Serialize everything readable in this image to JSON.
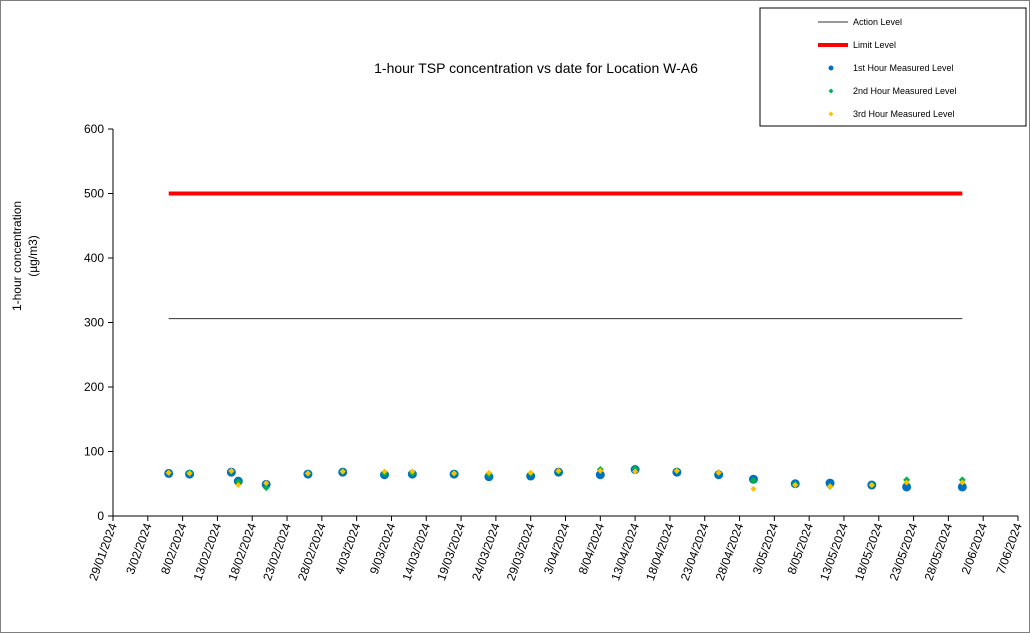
{
  "chart_data": {
    "type": "scatter",
    "title": "1-hour TSP concentration vs date for Location  W-A6",
    "ylabel_lines": [
      "1-hour concentration",
      "(µg/m3)"
    ],
    "xlabel": "",
    "ylim": [
      0,
      600
    ],
    "y_ticks": [
      0,
      100,
      200,
      300,
      400,
      500,
      600
    ],
    "x_start": "2024-01-29",
    "x_end": "2024-06-07",
    "x_ticks": [
      "29/01/2024",
      "3/02/2024",
      "8/02/2024",
      "13/02/2024",
      "18/02/2024",
      "23/02/2024",
      "28/02/2024",
      "4/03/2024",
      "9/03/2024",
      "14/03/2024",
      "19/03/2024",
      "24/03/2024",
      "29/03/2024",
      "3/04/2024",
      "8/04/2024",
      "13/04/2024",
      "18/04/2024",
      "23/04/2024",
      "28/04/2024",
      "3/05/2024",
      "8/05/2024",
      "13/05/2024",
      "18/05/2024",
      "23/05/2024",
      "28/05/2024",
      "2/06/2024",
      "7/06/2024"
    ],
    "x_tick_dates": [
      "2024-01-29",
      "2024-02-03",
      "2024-02-08",
      "2024-02-13",
      "2024-02-18",
      "2024-02-23",
      "2024-02-28",
      "2024-03-04",
      "2024-03-09",
      "2024-03-14",
      "2024-03-19",
      "2024-03-24",
      "2024-03-29",
      "2024-04-03",
      "2024-04-08",
      "2024-04-13",
      "2024-04-18",
      "2024-04-23",
      "2024-04-28",
      "2024-05-03",
      "2024-05-08",
      "2024-05-13",
      "2024-05-18",
      "2024-05-23",
      "2024-05-28",
      "2024-06-02",
      "2024-06-07"
    ],
    "legend_position": "top-right",
    "grid": false,
    "series": [
      {
        "name": "Action Level",
        "kind": "line",
        "color": "#333333",
        "x": [
          "2024-02-06",
          "2024-05-30"
        ],
        "values": [
          306,
          306
        ]
      },
      {
        "name": "Limit Level",
        "kind": "line",
        "color": "#ff0000",
        "x": [
          "2024-02-06",
          "2024-05-30"
        ],
        "values": [
          500,
          500
        ]
      },
      {
        "name": "1st Hour Measured Level",
        "kind": "points",
        "color": "#0070c0",
        "x": [
          "2024-02-06",
          "2024-02-09",
          "2024-02-15",
          "2024-02-16",
          "2024-02-20",
          "2024-02-26",
          "2024-03-02",
          "2024-03-08",
          "2024-03-12",
          "2024-03-18",
          "2024-03-23",
          "2024-03-29",
          "2024-04-02",
          "2024-04-08",
          "2024-04-13",
          "2024-04-19",
          "2024-04-25",
          "2024-04-30",
          "2024-05-06",
          "2024-05-11",
          "2024-05-17",
          "2024-05-22",
          "2024-05-30"
        ],
        "values": [
          66,
          65,
          68,
          54,
          49,
          65,
          68,
          64,
          65,
          65,
          61,
          62,
          68,
          64,
          72,
          68,
          64,
          57,
          50,
          51,
          48,
          45,
          45
        ]
      },
      {
        "name": "2nd Hour Measured Level",
        "kind": "points",
        "color": "#00b050",
        "x": [
          "2024-02-06",
          "2024-02-09",
          "2024-02-15",
          "2024-02-16",
          "2024-02-20",
          "2024-02-26",
          "2024-03-02",
          "2024-03-08",
          "2024-03-12",
          "2024-03-18",
          "2024-03-23",
          "2024-03-29",
          "2024-04-02",
          "2024-04-08",
          "2024-04-13",
          "2024-04-19",
          "2024-04-25",
          "2024-04-30",
          "2024-05-06",
          "2024-05-11",
          "2024-05-17",
          "2024-05-22",
          "2024-05-30"
        ],
        "values": [
          67,
          67,
          69,
          53,
          44,
          66,
          69,
          66,
          66,
          66,
          64,
          66,
          69,
          72,
          73,
          70,
          67,
          55,
          49,
          46,
          48,
          56,
          56
        ]
      },
      {
        "name": "3rd Hour Measured Level",
        "kind": "points",
        "color": "#ffc000",
        "x": [
          "2024-02-06",
          "2024-02-09",
          "2024-02-15",
          "2024-02-16",
          "2024-02-20",
          "2024-02-26",
          "2024-03-02",
          "2024-03-08",
          "2024-03-12",
          "2024-03-18",
          "2024-03-23",
          "2024-03-29",
          "2024-04-02",
          "2024-04-08",
          "2024-04-13",
          "2024-04-19",
          "2024-04-25",
          "2024-04-30",
          "2024-05-06",
          "2024-05-11",
          "2024-05-17",
          "2024-05-22",
          "2024-05-30"
        ],
        "values": [
          67,
          66,
          70,
          48,
          51,
          66,
          69,
          69,
          69,
          66,
          67,
          67,
          70,
          70,
          69,
          70,
          67,
          42,
          48,
          46,
          48,
          52,
          52
        ]
      }
    ]
  }
}
